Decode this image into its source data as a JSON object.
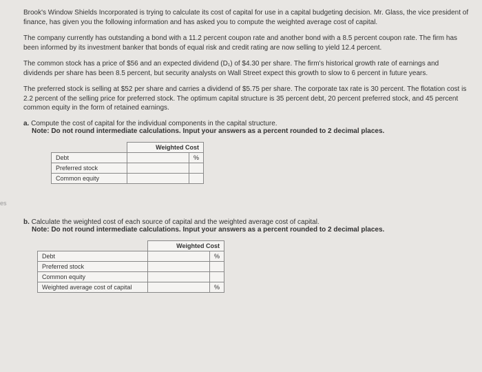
{
  "intro": "Brook's Window Shields Incorporated is trying to calculate its cost of capital for use in a capital budgeting decision. Mr. Glass, the vice president of finance, has given you the following information and has asked you to compute the weighted average cost of capital.",
  "para1": "The company currently has outstanding a bond with a 11.2 percent coupon rate and another bond with a 8.5 percent coupon rate. The firm has been informed by its investment banker that bonds of equal risk and credit rating are now selling to yield 12.4 percent.",
  "para2": "The common stock has a price of $56 and an expected dividend (D₁) of $4.30 per share. The firm's historical growth rate of earnings and dividends per share has been 8.5 percent, but security analysts on Wall Street expect this growth to slow to 6 percent in future years.",
  "para3": "The preferred stock is selling at $52 per share and carries a dividend of $5.75 per share. The corporate tax rate is 30 percent. The flotation cost is 2.2 percent of the selling price for preferred stock. The optimum capital structure is 35 percent debt, 20 percent preferred stock, and 45 percent common equity in the form of retained earnings.",
  "qa_label": "a.",
  "qa_text": "Compute the cost of capital for the individual components in the capital structure.",
  "qa_note": "Note: Do not round intermediate calculations. Input your answers as a percent rounded to 2 decimal places.",
  "qb_label": "b.",
  "qb_text": "Calculate the weighted cost of each source of capital and the weighted average cost of capital.",
  "qb_note": "Note: Do not round intermediate calculations. Input your answers as a percent rounded to 2 decimal places.",
  "table": {
    "header": "Weighted Cost",
    "rows": {
      "debt": "Debt",
      "preferred": "Preferred stock",
      "common": "Common equity",
      "wacc": "Weighted average cost of capital"
    },
    "pct": "%"
  },
  "marker": "es"
}
